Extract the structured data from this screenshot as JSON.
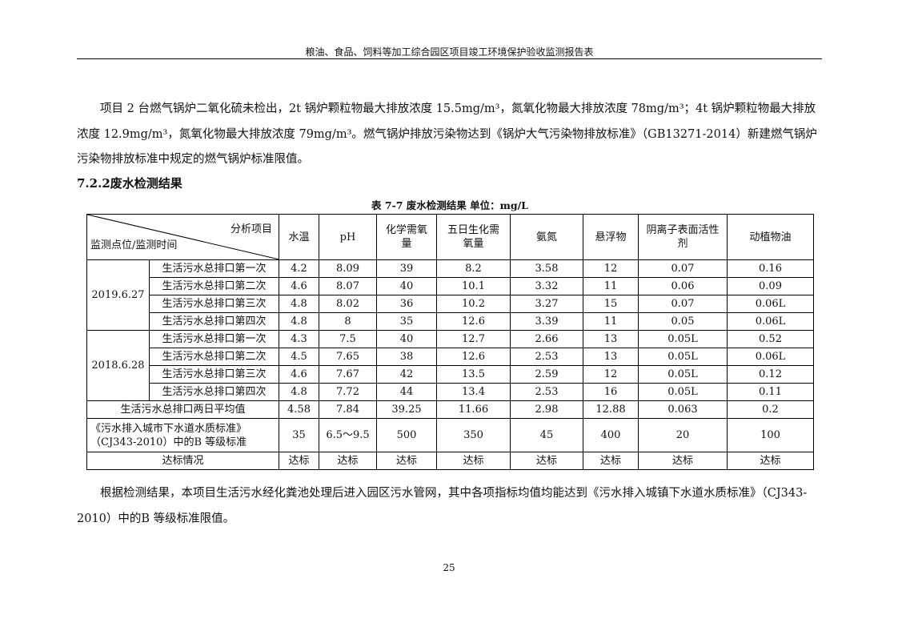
{
  "header": "粮油、食品、饲料等加工综合园区项目竣工环境保护验收监测报告表",
  "para1": "项目 2 台燃气锅炉二氧化硫未检出，2t 锅炉颗粒物最大排放浓度 15.5mg/m³，氮氧化物最大排放浓度 78mg/m³；4t 锅炉颗粒物最大排放浓度 12.9mg/m³，氮氧化物最大排放浓度 79mg/m³。燃气锅炉排放污染物达到《锅炉大气污染物排放标准》（GB13271-2014）新建燃气锅炉污染物排放标准中规定的燃气锅炉标准限值。",
  "section": "7.2.2废水检测结果",
  "caption": "表 7-7  废水检测结果  单位：mg/L",
  "table": {
    "corner_top": "分析项目",
    "corner_bottom": "监测点位/监测时间",
    "columns": [
      "水温",
      "pH",
      "化学需氧量",
      "五日生化需氧量",
      "氨氮",
      "悬浮物",
      "阴离子表面活性剂",
      "动植物油"
    ],
    "groups": [
      {
        "date": "2019.6.27",
        "rows": [
          {
            "label": "生活污水总排口第一次",
            "values": [
              "4.2",
              "8.09",
              "39",
              "8.2",
              "3.58",
              "12",
              "0.07",
              "0.16"
            ]
          },
          {
            "label": "生活污水总排口第二次",
            "values": [
              "4.6",
              "8.07",
              "40",
              "10.1",
              "3.32",
              "11",
              "0.06",
              "0.09"
            ]
          },
          {
            "label": "生活污水总排口第三次",
            "values": [
              "4.8",
              "8.02",
              "36",
              "10.2",
              "3.27",
              "15",
              "0.07",
              "0.06L"
            ]
          },
          {
            "label": "生活污水总排口第四次",
            "values": [
              "4.8",
              "8",
              "35",
              "12.6",
              "3.39",
              "11",
              "0.05",
              "0.06L"
            ]
          }
        ]
      },
      {
        "date": "2018.6.28",
        "rows": [
          {
            "label": "生活污水总排口第一次",
            "values": [
              "4.3",
              "7.5",
              "40",
              "12.7",
              "2.66",
              "13",
              "0.05L",
              "0.52"
            ]
          },
          {
            "label": "生活污水总排口第二次",
            "values": [
              "4.5",
              "7.65",
              "38",
              "12.6",
              "2.53",
              "13",
              "0.05L",
              "0.06L"
            ]
          },
          {
            "label": "生活污水总排口第三次",
            "values": [
              "4.6",
              "7.67",
              "42",
              "13.5",
              "2.59",
              "12",
              "0.05L",
              "0.12"
            ]
          },
          {
            "label": "生活污水总排口第四次",
            "values": [
              "4.8",
              "7.72",
              "44",
              "13.4",
              "2.53",
              "16",
              "0.05L",
              "0.11"
            ]
          }
        ]
      }
    ],
    "average": {
      "label": "生活污水总排口两日平均值",
      "values": [
        "4.58",
        "7.84",
        "39.25",
        "11.66",
        "2.98",
        "12.88",
        "0.063",
        "0.2"
      ]
    },
    "standard": {
      "label": "《污水排入城市下水道水质标准》（CJ343-2010）中的B 等级标准",
      "values": [
        "35",
        "6.5～9.5",
        "500",
        "350",
        "45",
        "400",
        "20",
        "100"
      ]
    },
    "compliance": {
      "label": "达标情况",
      "values": [
        "达标",
        "达标",
        "达标",
        "达标",
        "达标",
        "达标",
        "达标",
        "达标"
      ]
    }
  },
  "para2": "根据检测结果，本项目生活污水经化粪池处理后进入园区污水管网，其中各项指标均值均能达到《污水排入城镇下水道水质标准》（CJ343-2010）中的B 等级标准限值。",
  "page_number": "25"
}
